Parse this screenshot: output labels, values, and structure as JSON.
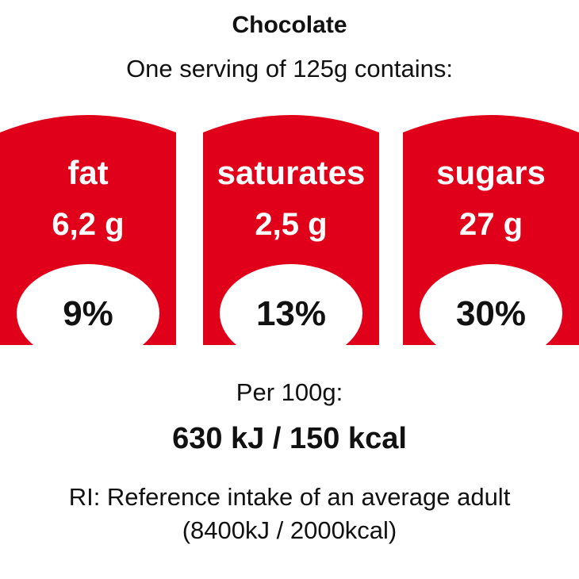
{
  "title": "Chocolate",
  "serving_text": "One serving of 125g contains:",
  "colors": {
    "badge_fill": "#e1001a",
    "percent_fill": "#ffffff",
    "text_dark": "#111111"
  },
  "nutrients": [
    {
      "label": "fat",
      "amount": "6,2 g",
      "percent": "9%"
    },
    {
      "label": "saturates",
      "amount": "2,5 g",
      "percent": "13%"
    },
    {
      "label": "sugars",
      "amount": "27 g",
      "percent": "30%"
    }
  ],
  "per_label": "Per 100g:",
  "energy": "630 kJ / 150 kcal",
  "ri_text": "RI: Reference intake of an average adult",
  "ri_detail": "(8400kJ / 2000kcal)"
}
